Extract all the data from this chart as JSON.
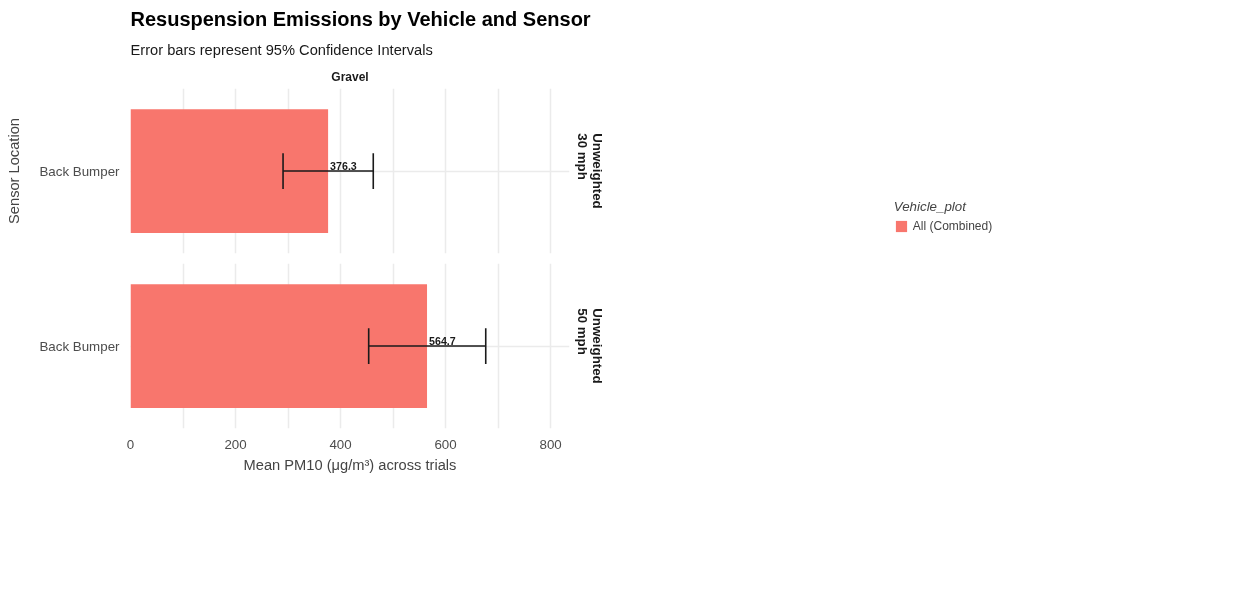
{
  "chart_data": [
    {
      "type": "bar",
      "orientation": "horizontal",
      "title": "Resuspension Emissions by Vehicle and Sensor",
      "subtitle": "Error bars represent 95% Confidence Intervals",
      "annotations": [
        "Gravel",
        "Unweighted\n30 mph"
      ],
      "ylabel": "Sensor Location",
      "legend_title": "Vehicle_plot",
      "legend": "right",
      "categories": [
        "Back Bumper"
      ],
      "series": [
        {
          "name": "All (Combined)",
          "color": "#f8766d",
          "values": [
            376.3
          ],
          "errors": [
            [
              290.5,
              462.3
            ]
          ]
        }
      ],
      "data_labels": true,
      "xlim": [
        0,
        836
      ],
      "xticks": [
        0,
        {
          "value": 100,
          "label": null
        },
        200,
        {
          "value": 300,
          "label": null
        },
        400,
        {
          "value": 500,
          "label": null
        },
        600,
        {
          "value": 700,
          "label": null
        },
        800
      ],
      "grid": true,
      "tick_labels": "y"
    },
    {
      "type": "bar",
      "orientation": "horizontal",
      "annotations": [
        "Unweighted\n50 mph"
      ],
      "xlabel": "Mean PM10 (μg/m³) across trials",
      "categories": [
        "Back Bumper"
      ],
      "series": [
        {
          "color": "#f8766d",
          "values": [
            564.7
          ],
          "errors": [
            [
              453.6,
              676.5
            ]
          ]
        }
      ],
      "data_labels": true,
      "xlim": [
        0,
        836
      ],
      "xticks": [
        0,
        {
          "value": 100,
          "label": null
        },
        200,
        {
          "value": 300,
          "label": null
        },
        400,
        {
          "value": 500,
          "label": null
        },
        600,
        {
          "value": 700,
          "label": null
        },
        800
      ],
      "grid": true
    }
  ]
}
